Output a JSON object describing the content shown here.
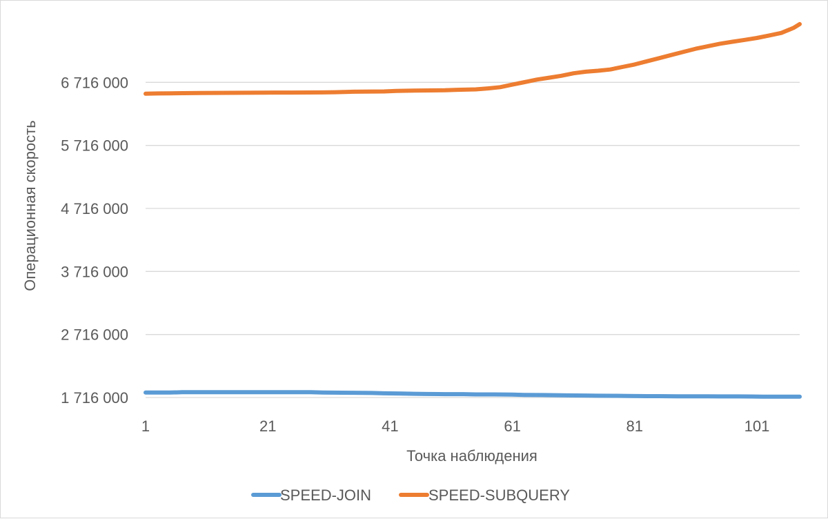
{
  "chart_data": {
    "type": "line",
    "title": "",
    "xlabel": "Точка наблюдения",
    "ylabel": "Операционная скорость",
    "x_range": [
      1,
      108
    ],
    "x_ticks": [
      1,
      21,
      41,
      61,
      81,
      101
    ],
    "x_tick_labels": [
      "1",
      "21",
      "41",
      "61",
      "81",
      "101"
    ],
    "ylim": [
      1716000,
      7716000
    ],
    "y_ticks": [
      1716000,
      2716000,
      3716000,
      4716000,
      5716000,
      6716000
    ],
    "y_tick_labels": [
      "1 716 000",
      "2 716 000",
      "3 716 000",
      "4 716 000",
      "5 716 000",
      "6 716 000"
    ],
    "grid": "horizontal",
    "legend_position": "bottom",
    "series": [
      {
        "name": "SPEED-JOIN",
        "color": "#5B9BD5",
        "x": [
          1,
          3,
          5,
          7,
          10,
          15,
          20,
          25,
          28,
          30,
          35,
          38,
          40,
          43,
          45,
          47,
          50,
          53,
          55,
          58,
          61,
          63,
          66,
          68,
          70,
          73,
          75,
          78,
          80,
          83,
          85,
          88,
          90,
          93,
          95,
          98,
          100,
          102,
          104,
          106,
          108
        ],
        "y": [
          1795000,
          1795000,
          1795000,
          1800000,
          1800000,
          1800000,
          1800000,
          1800000,
          1800000,
          1795000,
          1792000,
          1788000,
          1783000,
          1780000,
          1775000,
          1772000,
          1770000,
          1770000,
          1765000,
          1765000,
          1763000,
          1758000,
          1755000,
          1753000,
          1750000,
          1748000,
          1745000,
          1743000,
          1740000,
          1738000,
          1738000,
          1735000,
          1735000,
          1735000,
          1733000,
          1733000,
          1732000,
          1730000,
          1730000,
          1730000,
          1730000
        ]
      },
      {
        "name": "SPEED-SUBQUERY",
        "color": "#ED7D31",
        "x": [
          1,
          3,
          5,
          7,
          10,
          15,
          20,
          22,
          25,
          30,
          32,
          35,
          40,
          42,
          45,
          50,
          52,
          55,
          57,
          59,
          61,
          63,
          65,
          67,
          69,
          71,
          73,
          75,
          77,
          79,
          81,
          83,
          85,
          87,
          89,
          91,
          93,
          95,
          97,
          99,
          101,
          103,
          105,
          107,
          108
        ],
        "y": [
          6536000,
          6540000,
          6542000,
          6545000,
          6548000,
          6550000,
          6552000,
          6554000,
          6554000,
          6556000,
          6560000,
          6568000,
          6572000,
          6580000,
          6585000,
          6590000,
          6598000,
          6605000,
          6620000,
          6640000,
          6680000,
          6720000,
          6760000,
          6790000,
          6820000,
          6860000,
          6885000,
          6900000,
          6920000,
          6960000,
          7000000,
          7050000,
          7100000,
          7150000,
          7200000,
          7250000,
          7290000,
          7330000,
          7360000,
          7390000,
          7420000,
          7460000,
          7500000,
          7580000,
          7640000
        ]
      }
    ]
  }
}
